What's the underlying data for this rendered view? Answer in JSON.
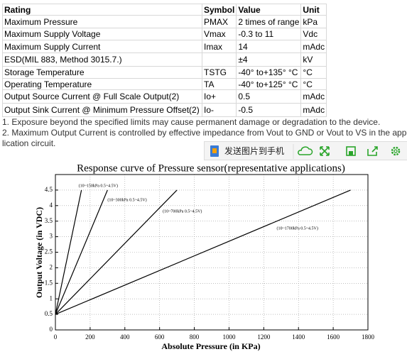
{
  "table": {
    "header": [
      "Rating",
      "Symbol",
      "Value",
      "Unit"
    ],
    "rows": [
      [
        "Maximum Pressure",
        "PMAX",
        "2 times of range",
        "kPa"
      ],
      [
        "Maximum Supply Voltage",
        "Vmax",
        "-0.3 to 11",
        "Vdc"
      ],
      [
        "Maximum Supply Current",
        "Imax",
        "14",
        "mAdc"
      ],
      [
        "ESD(MIL 883, Method 3015.7.)",
        "",
        "±4",
        "kV"
      ],
      [
        "Storage Temperature",
        "TSTG",
        "-40° to+135° °C",
        "°C"
      ],
      [
        "Operating Temperature",
        "TA",
        "-40° to+125° °C",
        "°C"
      ],
      [
        "Output Source Current @ Full Scale Output(2)",
        "Io+",
        "0.5",
        "mAdc"
      ],
      [
        "Output Sink Current @ Minimum Pressure Offset(2)",
        "Io-",
        "-0.5",
        "mAdc"
      ]
    ]
  },
  "notes": [
    "1. Exposure beyond the specified limits may cause permanent damage or degradation to the device.",
    "2. Maximum Output Current is controlled by effective impedance from Vout to GND or Vout to VS in the application circuit."
  ],
  "toolbar": {
    "send_button": "发送图片到手机"
  },
  "chart_data": {
    "type": "line",
    "title": "Response curve of Pressure sensor(representative applications)",
    "x_label": "Absolute Pressure (in KPa)",
    "y_label": "Output Voltage (in VDC)",
    "xlim": [
      0,
      1800
    ],
    "xticks": [
      0,
      200,
      400,
      600,
      800,
      1000,
      1200,
      1400,
      1600,
      1800
    ],
    "ylim": [
      0,
      5
    ],
    "yticks": [
      0,
      0.5,
      1,
      1.5,
      2,
      2.5,
      3,
      3.5,
      4,
      4.5
    ],
    "grid": true,
    "series": [
      {
        "name": "(10~150kPa 0.5~4.5V)",
        "color": "#000000",
        "x": [
          0,
          150
        ],
        "values": [
          0.5,
          4.5
        ]
      },
      {
        "name": "(10~300kPa 0.5~4.5V)",
        "color": "#000000",
        "x": [
          0,
          300
        ],
        "values": [
          0.5,
          4.5
        ]
      },
      {
        "name": "(10~700kPa 0.5~4.5V)",
        "color": "#000000",
        "x": [
          0,
          700
        ],
        "values": [
          0.5,
          4.5
        ]
      },
      {
        "name": "(10~1700kPa 0.5~4.5V)",
        "color": "#000000",
        "x": [
          0,
          1700
        ],
        "values": [
          0.5,
          4.5
        ]
      }
    ]
  }
}
